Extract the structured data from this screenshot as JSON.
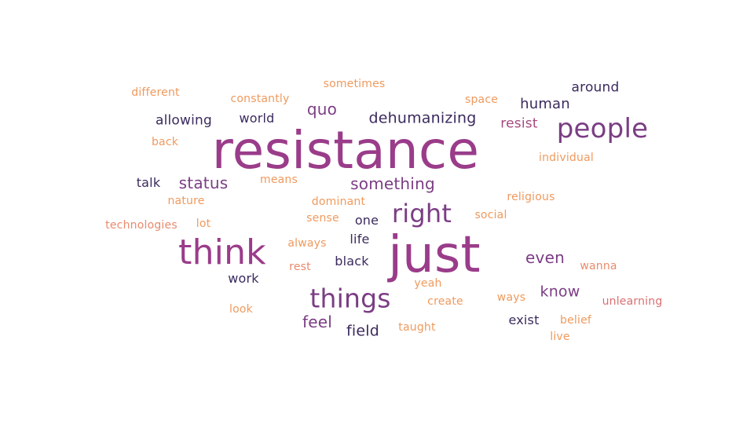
{
  "words": [
    {
      "text": "resistance"
    },
    {
      "text": "just"
    },
    {
      "text": "think"
    },
    {
      "text": "people"
    },
    {
      "text": "things"
    },
    {
      "text": "right"
    },
    {
      "text": "something"
    },
    {
      "text": "status"
    },
    {
      "text": "dehumanizing"
    },
    {
      "text": "quo"
    },
    {
      "text": "even"
    },
    {
      "text": "feel"
    },
    {
      "text": "know"
    },
    {
      "text": "field"
    },
    {
      "text": "human"
    },
    {
      "text": "around"
    },
    {
      "text": "resist"
    },
    {
      "text": "allowing"
    },
    {
      "text": "world"
    },
    {
      "text": "talk"
    },
    {
      "text": "one"
    },
    {
      "text": "life"
    },
    {
      "text": "black"
    },
    {
      "text": "work"
    },
    {
      "text": "exist"
    },
    {
      "text": "sometimes"
    },
    {
      "text": "different"
    },
    {
      "text": "constantly"
    },
    {
      "text": "space"
    },
    {
      "text": "back"
    },
    {
      "text": "individual"
    },
    {
      "text": "means"
    },
    {
      "text": "dominant"
    },
    {
      "text": "religious"
    },
    {
      "text": "nature"
    },
    {
      "text": "lot"
    },
    {
      "text": "sense"
    },
    {
      "text": "social"
    },
    {
      "text": "technologies"
    },
    {
      "text": "always"
    },
    {
      "text": "rest"
    },
    {
      "text": "wanna"
    },
    {
      "text": "yeah"
    },
    {
      "text": "ways"
    },
    {
      "text": "create"
    },
    {
      "text": "unlearning"
    },
    {
      "text": "look"
    },
    {
      "text": "belief"
    },
    {
      "text": "taught"
    },
    {
      "text": "live"
    }
  ]
}
